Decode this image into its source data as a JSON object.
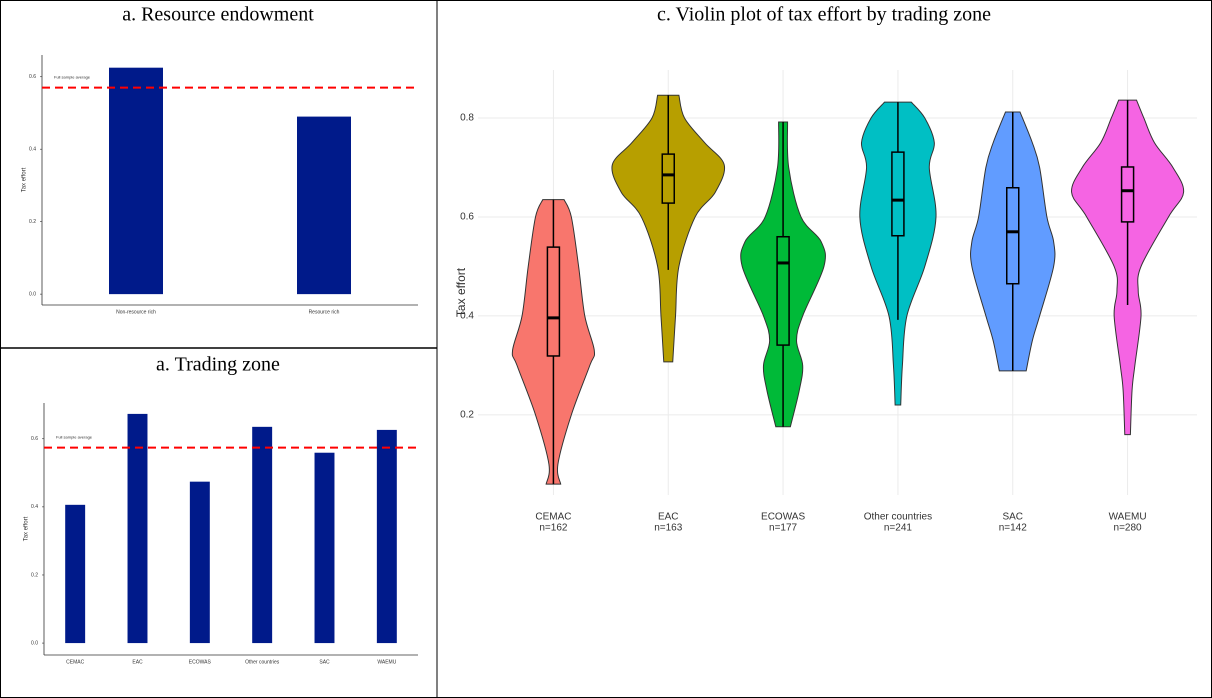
{
  "chart_data": [
    {
      "type": "bar",
      "title": "a. Resource endowment",
      "y_label": "Tax effort",
      "categories": [
        "Non-resource rich",
        "Resource rich"
      ],
      "values": [
        0.625,
        0.49
      ],
      "color": "#001a8a",
      "reference_line": {
        "value": 0.57,
        "label": "Full sample average",
        "color": "#ff0000"
      },
      "ylim": [
        -0.03,
        0.66
      ],
      "yticks": [
        {
          "value": 0,
          "label": "0.0"
        },
        0.2,
        0.4,
        0.6
      ]
    },
    {
      "type": "bar",
      "title": "a. Trading zone",
      "y_label": "Tax effort",
      "categories": [
        "CEMAC",
        "EAC",
        "ECOWAS",
        "Other countries",
        "SAC",
        "WAEMU"
      ],
      "values": [
        0.406,
        0.673,
        0.474,
        0.635,
        0.559,
        0.626
      ],
      "color": "#001a8a",
      "reference_line": {
        "value": 0.574,
        "label": "Full sample average",
        "color": "#ff0000"
      },
      "ylim": [
        -0.035,
        0.705
      ],
      "yticks": [
        {
          "value": 0,
          "label": "0.0"
        },
        0.2,
        0.4,
        0.6
      ]
    },
    {
      "type": "violin",
      "title": "c. Violin plot of tax effort by trading zone",
      "y_label": "Tax effort",
      "categories": [
        "CEMAC",
        "EAC",
        "ECOWAS",
        "Other countries",
        "SAC",
        "WAEMU"
      ],
      "n_labels": [
        "n=162",
        "n=163",
        "n=177",
        "n=241",
        "n=142",
        "n=280"
      ],
      "colors": [
        "#f8766d",
        "#b79f00",
        "#00ba38",
        "#00bfc4",
        "#619cff",
        "#f564e3"
      ],
      "ylim": [
        0.038,
        0.897
      ],
      "yticks": [
        0.2,
        0.4,
        0.6,
        0.8
      ],
      "grid": true,
      "groups": [
        {
          "density_y": [
            0.06,
            0.1,
            0.2,
            0.3,
            0.33,
            0.4,
            0.5,
            0.6,
            0.635
          ],
          "density": [
            0.13,
            0.08,
            0.32,
            0.65,
            0.73,
            0.56,
            0.45,
            0.32,
            0.19
          ],
          "whisker_low": 0.06,
          "q1": 0.319,
          "median": 0.396,
          "q3": 0.539,
          "whisker_high": 0.635
        },
        {
          "density_y": [
            0.307,
            0.4,
            0.5,
            0.6,
            0.65,
            0.705,
            0.75,
            0.8,
            0.846
          ],
          "density": [
            0.08,
            0.13,
            0.19,
            0.48,
            0.84,
            1.0,
            0.65,
            0.29,
            0.19
          ],
          "whisker_low": 0.493,
          "q1": 0.628,
          "median": 0.685,
          "q3": 0.727,
          "whisker_high": 0.846
        },
        {
          "density_y": [
            0.176,
            0.25,
            0.3,
            0.35,
            0.4,
            0.5,
            0.55,
            0.6,
            0.7,
            0.792
          ],
          "density": [
            0.13,
            0.29,
            0.35,
            0.24,
            0.35,
            0.73,
            0.68,
            0.32,
            0.1,
            0.08
          ],
          "whisker_low": 0.176,
          "q1": 0.341,
          "median": 0.507,
          "q3": 0.56,
          "whisker_high": 0.792
        },
        {
          "density_y": [
            0.22,
            0.3,
            0.4,
            0.5,
            0.6,
            0.7,
            0.75,
            0.8,
            0.832
          ],
          "density": [
            0.05,
            0.08,
            0.16,
            0.48,
            0.68,
            0.56,
            0.65,
            0.48,
            0.24
          ],
          "whisker_low": 0.392,
          "q1": 0.562,
          "median": 0.634,
          "q3": 0.731,
          "whisker_high": 0.832
        },
        {
          "density_y": [
            0.289,
            0.35,
            0.4,
            0.5,
            0.55,
            0.6,
            0.7,
            0.75,
            0.812
          ],
          "density": [
            0.24,
            0.35,
            0.48,
            0.73,
            0.73,
            0.61,
            0.48,
            0.35,
            0.13
          ],
          "whisker_low": 0.289,
          "q1": 0.465,
          "median": 0.57,
          "q3": 0.659,
          "whisker_high": 0.812
        },
        {
          "density_y": [
            0.16,
            0.25,
            0.3,
            0.4,
            0.45,
            0.5,
            0.6,
            0.65,
            0.7,
            0.75,
            0.8,
            0.836
          ],
          "density": [
            0.05,
            0.08,
            0.13,
            0.24,
            0.19,
            0.24,
            0.73,
            1.0,
            0.81,
            0.48,
            0.29,
            0.16
          ],
          "whisker_low": 0.422,
          "q1": 0.59,
          "median": 0.653,
          "q3": 0.701,
          "whisker_high": 0.836
        }
      ]
    }
  ]
}
